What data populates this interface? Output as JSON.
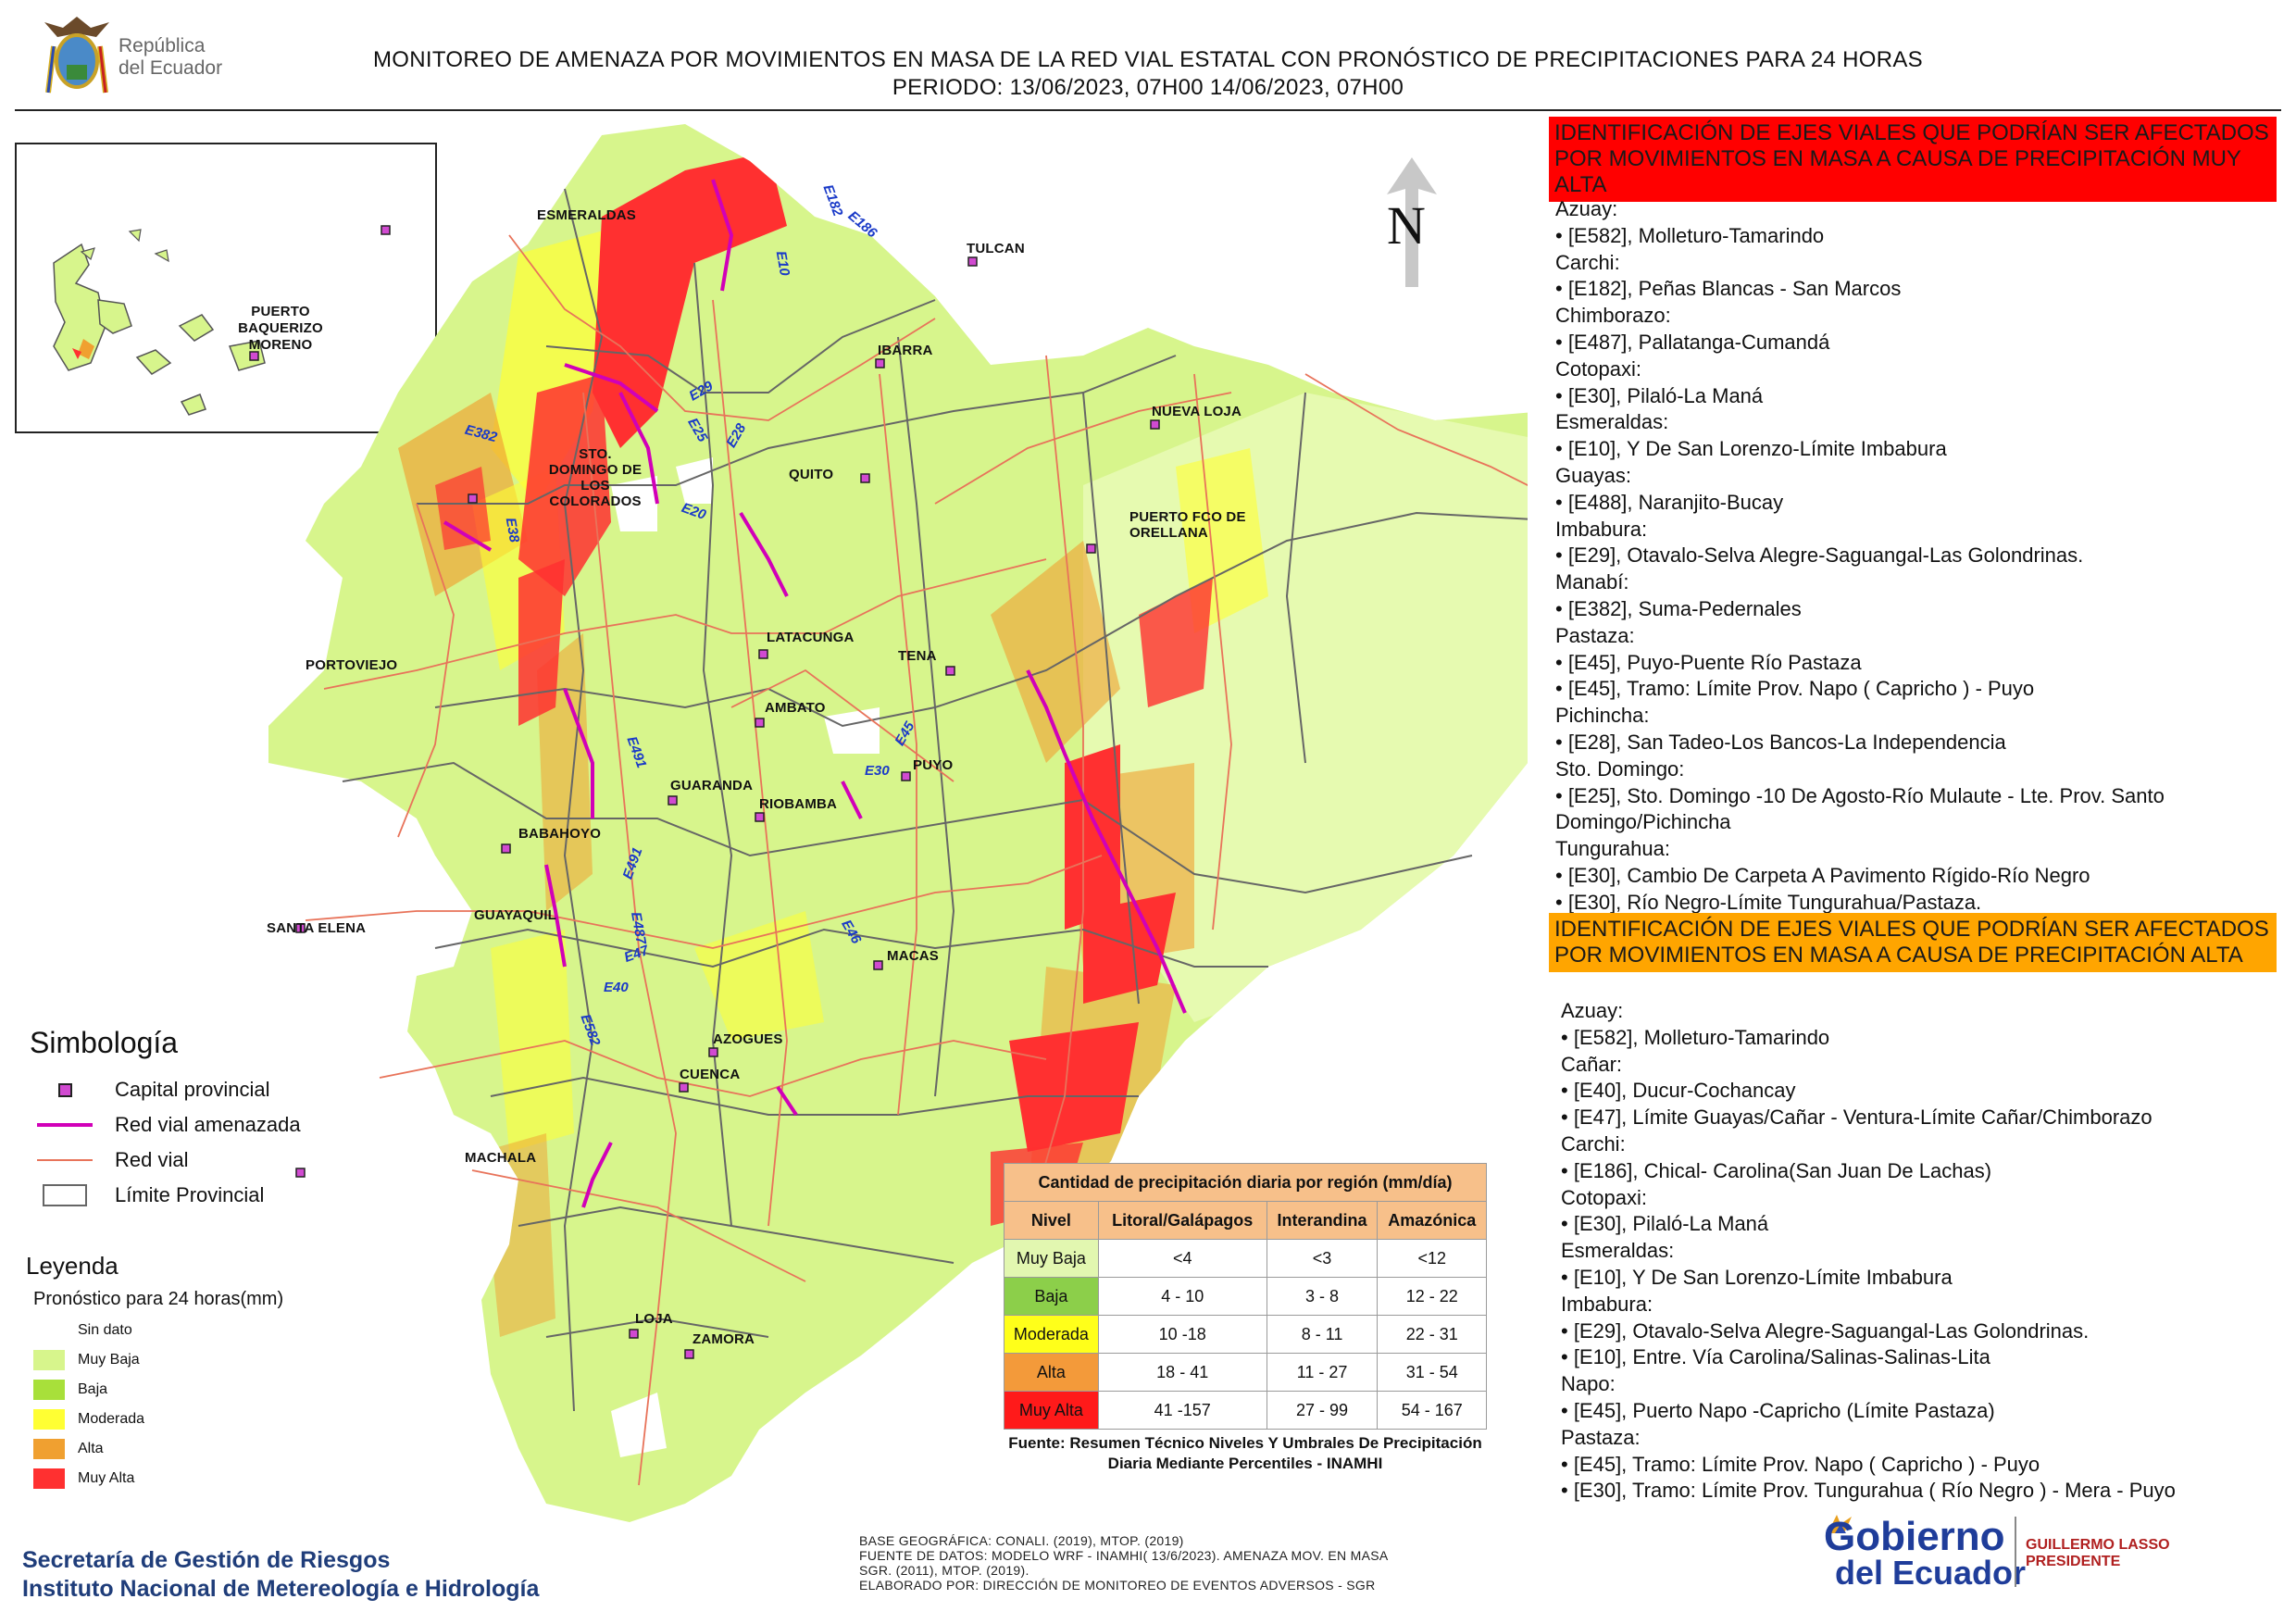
{
  "header": {
    "logo_text_line1": "República",
    "logo_text_line2": "del Ecuador",
    "title_line1": "MONITOREO DE AMENAZA POR MOVIMIENTOS EN MASA DE LA RED VIAL  ESTATAL  CON PRONÓSTICO  DE  PRECIPITACIONES PARA 24 HORAS",
    "title_line2": "PERIODO: 13/06/2023, 07H00 14/06/2023, 07H00"
  },
  "map": {
    "north_label": "N",
    "inset_city": "PUERTO BAQUERIZO MORENO",
    "cities": [
      {
        "id": "esmeraldas",
        "label": "ESMERALDAS"
      },
      {
        "id": "tulcan",
        "label": "TULCAN"
      },
      {
        "id": "ibarra",
        "label": "IBARRA"
      },
      {
        "id": "nueva-loja",
        "label": "NUEVA LOJA"
      },
      {
        "id": "quito",
        "label": "QUITO"
      },
      {
        "id": "sto-domingo",
        "label": "STO. DOMINGO DE LOS COLORADOS"
      },
      {
        "id": "orellana",
        "label": "PUERTO FCO DE ORELLANA"
      },
      {
        "id": "portoviejo",
        "label": "PORTOVIEJO"
      },
      {
        "id": "latacunga",
        "label": "LATACUNGA"
      },
      {
        "id": "tena",
        "label": "TENA"
      },
      {
        "id": "ambato",
        "label": "AMBATO"
      },
      {
        "id": "puyo",
        "label": "PUYO"
      },
      {
        "id": "guaranda",
        "label": "GUARANDA"
      },
      {
        "id": "riobamba",
        "label": "RIOBAMBA"
      },
      {
        "id": "babahoyo",
        "label": "BABAHOYO"
      },
      {
        "id": "santa-elena",
        "label": "SANTA ELENA"
      },
      {
        "id": "guayaquil",
        "label": "GUAYAQUIL"
      },
      {
        "id": "macas",
        "label": "MACAS"
      },
      {
        "id": "azogues",
        "label": "AZOGUES"
      },
      {
        "id": "cuenca",
        "label": "CUENCA"
      },
      {
        "id": "machala",
        "label": "MACHALA"
      },
      {
        "id": "loja",
        "label": "LOJA"
      },
      {
        "id": "zamora",
        "label": "ZAMORA"
      }
    ],
    "roads": [
      "E182",
      "E186",
      "E10",
      "E29",
      "E25",
      "E28",
      "E382",
      "E20",
      "E38",
      "E45",
      "E30",
      "E491",
      "E491",
      "E487",
      "E47",
      "E40",
      "E582",
      "E46"
    ]
  },
  "panel_very_high": {
    "heading": "IDENTIFICACIÓN DE EJES VIALES QUE PODRÍAN SER AFECTADOS POR MOVIMIENTOS EN MASA A CAUSA DE PRECIPITACIÓN MUY ALTA",
    "color": "#ff0000",
    "lines": [
      "Azuay:",
      "• [E582], Molleturo-Tamarindo",
      "Carchi:",
      "• [E182], Peñas Blancas - San Marcos",
      "Chimborazo:",
      "• [E487], Pallatanga-Cumandá",
      "Cotopaxi:",
      "• [E30], Pilaló-La Maná",
      "Esmeraldas:",
      "• [E10], Y De San Lorenzo-Límite Imbabura",
      "Guayas:",
      "• [E488], Naranjito-Bucay",
      "Imbabura:",
      "• [E29], Otavalo-Selva Alegre-Saguangal-Las Golondrinas.",
      "Manabí:",
      "• [E382], Suma-Pedernales",
      "Pastaza:",
      "• [E45], Puyo-Puente Río Pastaza",
      "• [E45], Tramo: Límite Prov. Napo ( Capricho ) - Puyo",
      "Pichincha:",
      "• [E28], San Tadeo-Los Bancos-La Independencia",
      "Sto. Domingo:",
      "• [E25], Sto. Domingo -10 De Agosto-Río Mulaute - Lte. Prov. Santo Domingo/Pichincha",
      "Tungurahua:",
      "• [E30], Cambio De Carpeta A Pavimento Rígido-Río Negro",
      "• [E30], Río Negro-Límite Tungurahua/Pastaza."
    ]
  },
  "panel_high": {
    "heading": "IDENTIFICACIÓN DE EJES VIALES QUE PODRÍAN SER AFECTADOS POR MOVIMIENTOS EN MASA A CAUSA DE PRECIPITACIÓN  ALTA",
    "color": "#ffa500",
    "lines": [
      "Azuay:",
      "• [E582], Molleturo-Tamarindo",
      "Cañar:",
      "• [E40], Ducur-Cochancay",
      "• [E47], Límite Guayas/Cañar - Ventura-Límite Cañar/Chimborazo",
      "Carchi:",
      "• [E186], Chical- Carolina(San Juan De Lachas)",
      "Cotopaxi:",
      "• [E30], Pilaló-La Maná",
      "Esmeraldas:",
      "• [E10], Y De San Lorenzo-Límite Imbabura",
      "Imbabura:",
      "• [E29], Otavalo-Selva Alegre-Saguangal-Las Golondrinas.",
      "• [E10], Entre. Vía Carolina/Salinas-Salinas-Lita",
      "Napo:",
      "• [E45], Puerto Napo -Capricho (Límite Pastaza)",
      "Pastaza:",
      "• [E45], Tramo: Límite Prov. Napo ( Capricho ) - Puyo",
      "• [E30], Tramo: Límite Prov. Tungurahua ( Río Negro ) - Mera - Puyo"
    ]
  },
  "simbologia": {
    "title": "Simbología",
    "items": [
      {
        "label": "Capital provincial",
        "icon": "capital-icon"
      },
      {
        "label": "Red vial amenazada",
        "color": "#d100b8"
      },
      {
        "label": "Red vial",
        "color": "#e8735a"
      },
      {
        "label": "Límite Provincial",
        "color": "#666666"
      }
    ]
  },
  "leyenda": {
    "title": "Leyenda",
    "subtitle": "Pronóstico para 24 horas(mm)",
    "items": [
      {
        "label": "Sin dato",
        "color": "#ffffff"
      },
      {
        "label": "Muy Baja",
        "color": "#d7f58c"
      },
      {
        "label": "Baja",
        "color": "#a8e03a"
      },
      {
        "label": "Moderada",
        "color": "#ffff33"
      },
      {
        "label": "Alta",
        "color": "#f0a030"
      },
      {
        "label": "Muy Alta",
        "color": "#ff3030"
      }
    ]
  },
  "precip_table": {
    "title": "Cantidad de precipitación diaria por región (mm/día)",
    "headers": [
      "Nivel",
      "Litoral/Galápagos",
      "Interandina",
      "Amazónica"
    ],
    "rows": [
      {
        "level": "Muy Baja",
        "color": "#e2f7b0",
        "values": [
          "<4",
          "<3",
          "<12"
        ]
      },
      {
        "level": "Baja",
        "color": "#8ccf4a",
        "values": [
          "4 - 10",
          "3 - 8",
          "12 - 22"
        ]
      },
      {
        "level": "Moderada",
        "color": "#ffff1a",
        "values": [
          "10 -18",
          "8 - 11",
          "22 - 31"
        ]
      },
      {
        "level": "Alta",
        "color": "#f39a3a",
        "values": [
          "18 - 41",
          "11 - 27",
          "31 - 54"
        ]
      },
      {
        "level": "Muy Alta",
        "color": "#ff1a1a",
        "values": [
          "41 -157",
          "27 - 99",
          "54 - 167"
        ]
      }
    ],
    "caption": "Fuente: Resumen Técnico Niveles Y Umbrales De Precipitación Diaria Mediante Percentiles - INAMHI"
  },
  "footer": {
    "left_line1": "Secretaría de Gestión de Riesgos",
    "left_line2": "Instituto Nacional de Metereología e Hidrología",
    "base_line1": "BASE GEOGRÁFICA: CONALI. (2019), MTOP. (2019)",
    "base_line2": "FUENTE DE DATOS: MODELO WRF - INAMHI( 13/6/2023).  AMENAZA MOV. EN MASA",
    "base_line3": "SGR. (2011), MTOP. (2019).",
    "base_line4": "ELABORADO POR: DIRECCIÓN DE MONITOREO DE EVENTOS ADVERSOS - SGR",
    "gob_line1": "Gobierno",
    "gob_line2": "del Ecuador",
    "president_name": "GUILLERMO LASSO",
    "president_title": "PRESIDENTE"
  }
}
